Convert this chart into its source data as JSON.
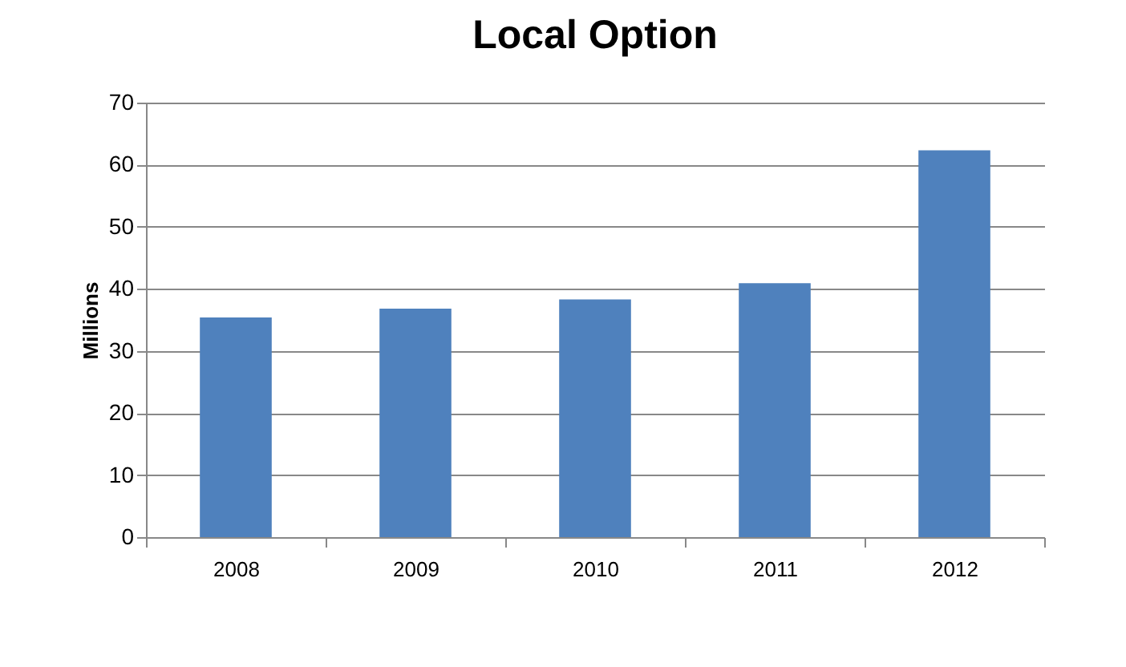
{
  "chart_data": {
    "type": "bar",
    "title": "Local Option",
    "ylabel": "Millions",
    "categories": [
      "2008",
      "2009",
      "2010",
      "2011",
      "2012"
    ],
    "values": [
      35.4,
      36.8,
      38.3,
      40.9,
      62.3
    ],
    "color": "#4f81bd",
    "ylim": [
      0,
      70
    ],
    "yticks": [
      0,
      10,
      20,
      30,
      40,
      50,
      60,
      70
    ],
    "grid": "y"
  }
}
